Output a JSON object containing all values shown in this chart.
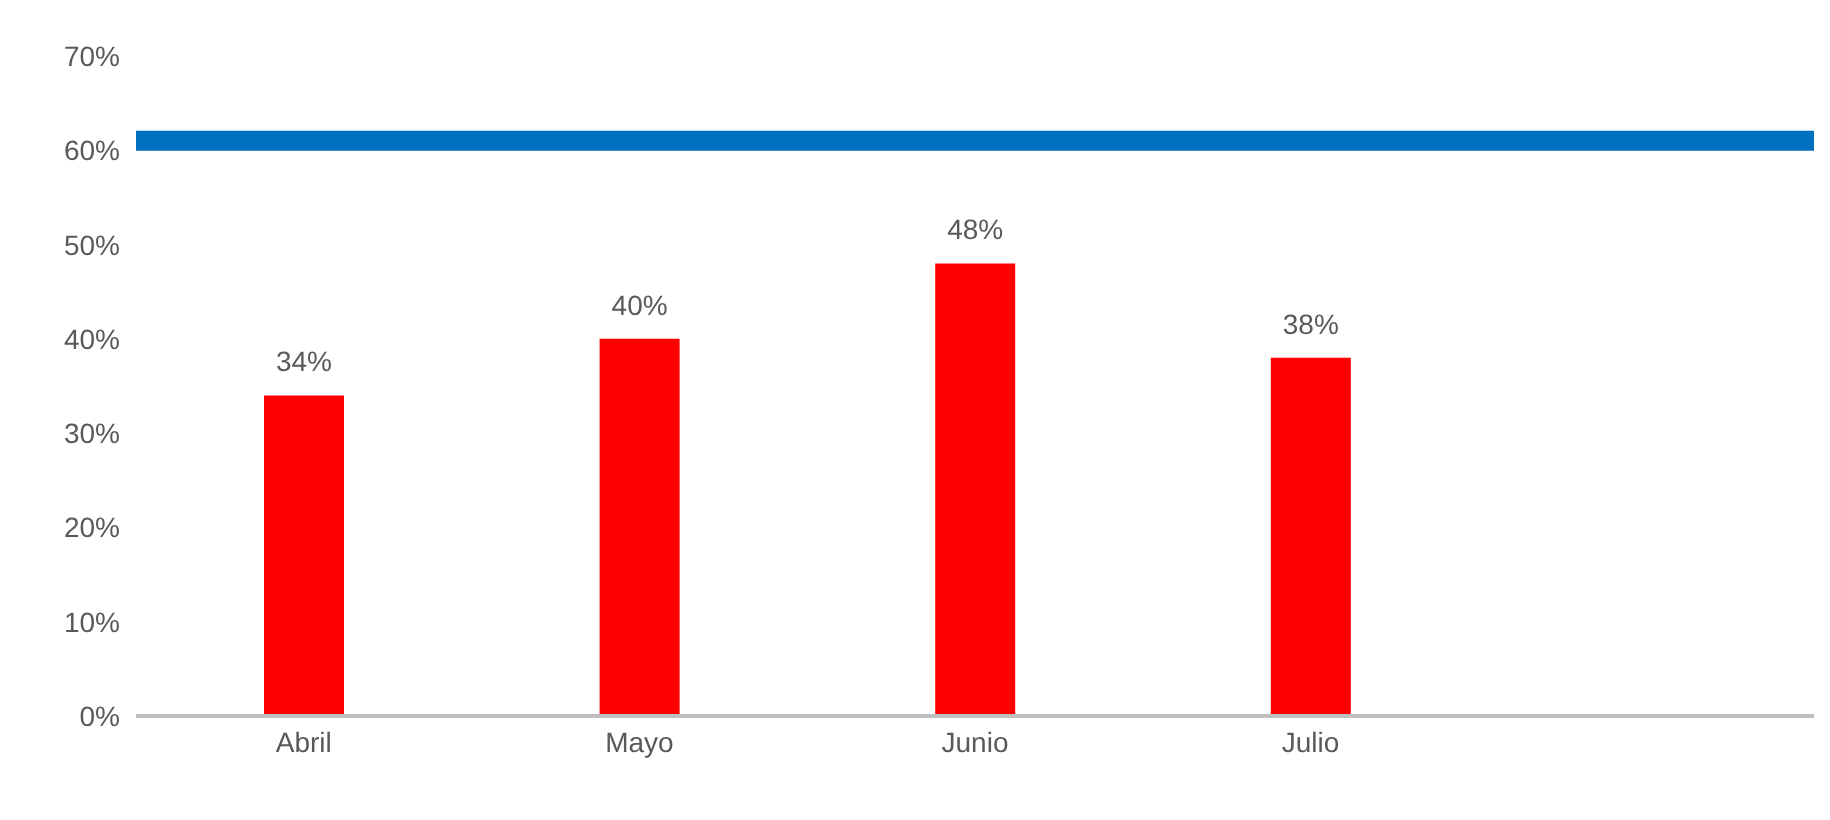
{
  "chart_data": {
    "type": "bar",
    "categories": [
      "Abril",
      "Mayo",
      "Junio",
      "Julio",
      null
    ],
    "values": [
      34,
      40,
      48,
      38,
      null
    ],
    "color": "#ff0000",
    "value_labels": [
      "34%",
      "40%",
      "48%",
      "38%",
      null
    ],
    "ylim": [
      0,
      70
    ],
    "yticks": [
      {
        "value": 0,
        "label": "0%"
      },
      {
        "value": 10,
        "label": "10%"
      },
      {
        "value": 20,
        "label": "20%"
      },
      {
        "value": 30,
        "label": "30%"
      },
      {
        "value": 40,
        "label": "40%"
      },
      {
        "value": 50,
        "label": "50%"
      },
      {
        "value": 60,
        "label": "60%"
      },
      {
        "value": 70,
        "label": "70%"
      }
    ],
    "ref_lines": [
      {
        "axis": "y",
        "value": 61,
        "color": "#0070c0"
      }
    ],
    "grid": false,
    "legend": false
  }
}
